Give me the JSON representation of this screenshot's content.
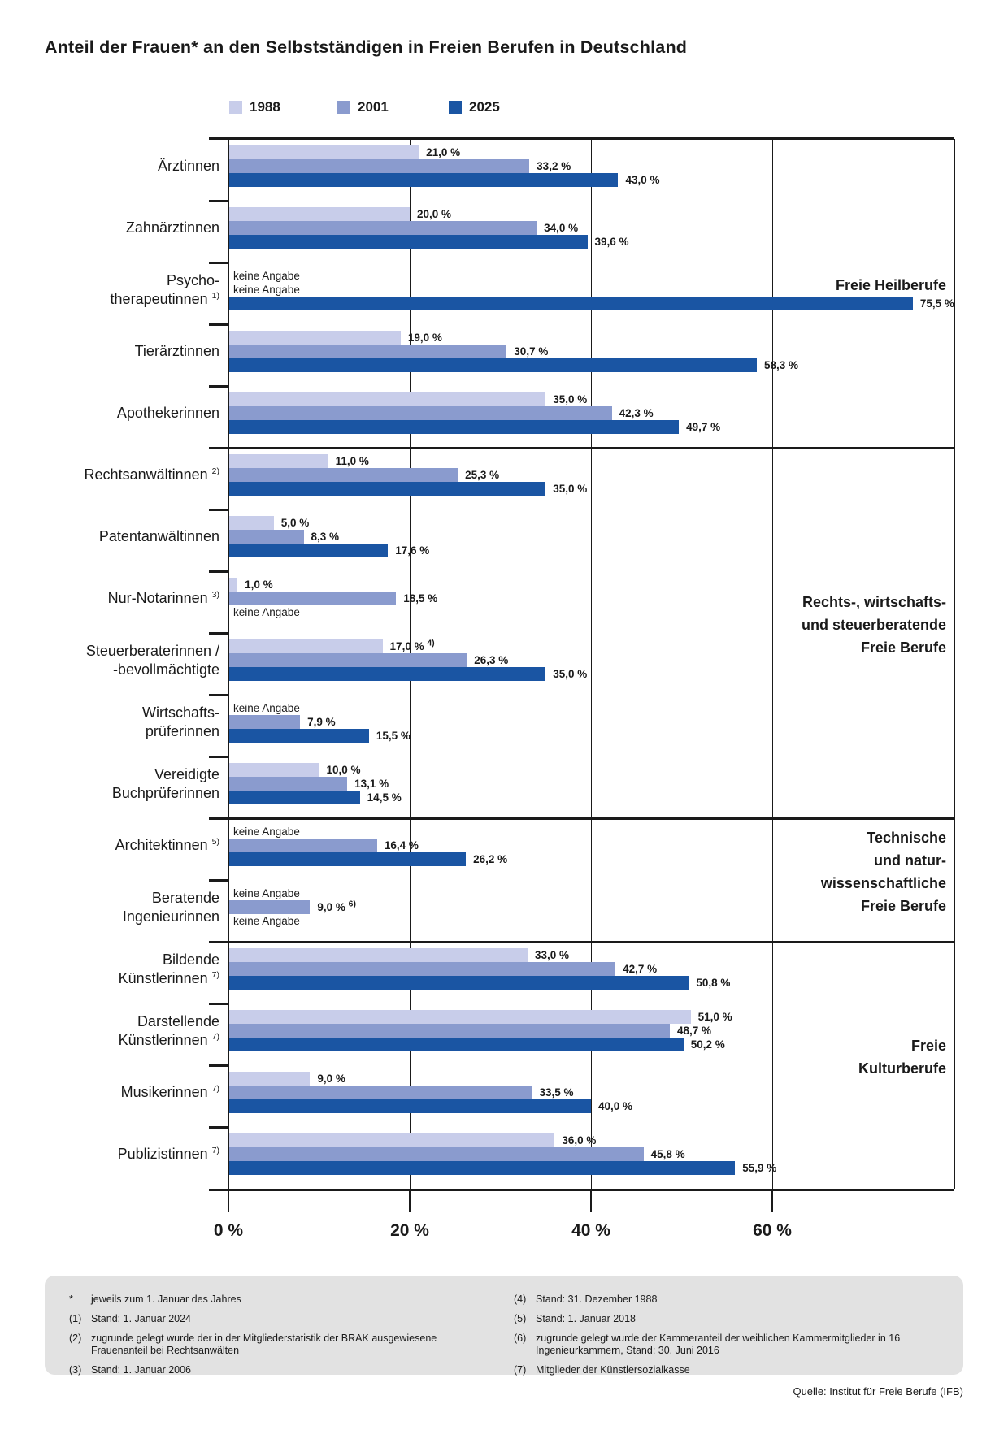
{
  "title": "Anteil der Frauen* an den Selbstständigen in Freien Berufen in Deutschland",
  "legend": {
    "items": [
      {
        "label": "1988"
      },
      {
        "label": "2001"
      },
      {
        "label": "2025"
      }
    ]
  },
  "colors": {
    "1988": "#c8cdea",
    "2001": "#8a9bce",
    "2025": "#1a55a3"
  },
  "chart_data": {
    "type": "bar",
    "orientation": "horizontal",
    "title": "Anteil der Frauen* an den Selbstständigen in Freien Berufen in Deutschland",
    "series_names": [
      "1988",
      "2001",
      "2025"
    ],
    "xlim": [
      0,
      80
    ],
    "grid": true,
    "x_ticks": [
      {
        "pct": 0,
        "label": "0 %"
      },
      {
        "pct": 20,
        "label": "20 %"
      },
      {
        "pct": 40,
        "label": "40 %"
      },
      {
        "pct": 60,
        "label": "60 %"
      }
    ],
    "no_data_text": "keine Angabe",
    "groups": [
      {
        "label_lines": [
          "Freie Heilberufe"
        ],
        "start": 0,
        "end": 4
      },
      {
        "label_lines": [
          "Rechts-, wirtschafts-",
          "und steuerberatende",
          "Freie Berufe"
        ],
        "start": 5,
        "end": 10
      },
      {
        "label_lines": [
          "Technische",
          "und natur-",
          "wissenschaftliche",
          "Freie Berufe"
        ],
        "start": 11,
        "end": 12
      },
      {
        "label_lines": [
          "Freie",
          "Kulturberufe"
        ],
        "start": 13,
        "end": 16
      }
    ],
    "rows": [
      {
        "label_lines": [
          "Ärztinnen"
        ],
        "sup": "",
        "values": [
          {
            "v": 21.0,
            "label": "21,0 %"
          },
          {
            "v": 33.2,
            "label": "33,2 %"
          },
          {
            "v": 43.0,
            "label": "43,0 %"
          }
        ]
      },
      {
        "label_lines": [
          "Zahnärztinnen"
        ],
        "sup": "",
        "values": [
          {
            "v": 20.0,
            "label": "20,0 %"
          },
          {
            "v": 34.0,
            "label": "34,0 %"
          },
          {
            "v": 39.6,
            "label": "39,6 %"
          }
        ]
      },
      {
        "label_lines": [
          "Psycho-",
          "therapeutinnen"
        ],
        "sup": "1)",
        "values": [
          {
            "v": null,
            "label": "keine Angabe"
          },
          {
            "v": null,
            "label": "keine Angabe"
          },
          {
            "v": 75.5,
            "label": "75,5 %"
          }
        ]
      },
      {
        "label_lines": [
          "Tierärztinnen"
        ],
        "sup": "",
        "values": [
          {
            "v": 19.0,
            "label": "19,0 %"
          },
          {
            "v": 30.7,
            "label": "30,7 %"
          },
          {
            "v": 58.3,
            "label": "58,3 %"
          }
        ]
      },
      {
        "label_lines": [
          "Apothekerinnen"
        ],
        "sup": "",
        "values": [
          {
            "v": 35.0,
            "label": "35,0 %"
          },
          {
            "v": 42.3,
            "label": "42,3 %"
          },
          {
            "v": 49.7,
            "label": "49,7 %"
          }
        ]
      },
      {
        "label_lines": [
          "Rechtsanwältinnen"
        ],
        "sup": "2)",
        "values": [
          {
            "v": 11.0,
            "label": "11,0 %"
          },
          {
            "v": 25.3,
            "label": "25,3 %"
          },
          {
            "v": 35.0,
            "label": "35,0 %"
          }
        ]
      },
      {
        "label_lines": [
          "Patentanwältinnen"
        ],
        "sup": "",
        "values": [
          {
            "v": 5.0,
            "label": "5,0 %"
          },
          {
            "v": 8.3,
            "label": "8,3 %"
          },
          {
            "v": 17.6,
            "label": "17,6 %"
          }
        ]
      },
      {
        "label_lines": [
          "Nur-Notarinnen"
        ],
        "sup": "3)",
        "values": [
          {
            "v": 1.0,
            "label": "1,0 %"
          },
          {
            "v": 18.5,
            "label": "18,5 %"
          },
          {
            "v": null,
            "label": "keine Angabe"
          }
        ]
      },
      {
        "label_lines": [
          "Steuerberaterinnen /",
          "-bevollmächtigte"
        ],
        "sup": "",
        "values": [
          {
            "v": 17.0,
            "label": "17,0 %",
            "sup": "4)"
          },
          {
            "v": 26.3,
            "label": "26,3 %"
          },
          {
            "v": 35.0,
            "label": "35,0 %"
          }
        ]
      },
      {
        "label_lines": [
          "Wirtschafts-",
          "prüferinnen"
        ],
        "sup": "",
        "values": [
          {
            "v": null,
            "label": "keine Angabe"
          },
          {
            "v": 7.9,
            "label": "7,9 %"
          },
          {
            "v": 15.5,
            "label": "15,5 %"
          }
        ]
      },
      {
        "label_lines": [
          "Vereidigte",
          "Buchprüferinnen"
        ],
        "sup": "",
        "values": [
          {
            "v": 10.0,
            "label": "10,0 %"
          },
          {
            "v": 13.1,
            "label": "13,1 %"
          },
          {
            "v": 14.5,
            "label": "14,5 %"
          }
        ]
      },
      {
        "label_lines": [
          "Architektinnen"
        ],
        "sup": "5)",
        "values": [
          {
            "v": null,
            "label": "keine Angabe"
          },
          {
            "v": 16.4,
            "label": "16,4 %"
          },
          {
            "v": 26.2,
            "label": "26,2 %"
          }
        ]
      },
      {
        "label_lines": [
          "Beratende",
          "Ingenieurinnen"
        ],
        "sup": "",
        "values": [
          {
            "v": null,
            "label": "keine Angabe"
          },
          {
            "v": 9.0,
            "label": "9,0 %",
            "sup": "6)"
          },
          {
            "v": null,
            "label": "keine Angabe"
          }
        ]
      },
      {
        "label_lines": [
          "Bildende",
          "Künstlerinnen"
        ],
        "sup": "7)",
        "values": [
          {
            "v": 33.0,
            "label": "33,0 %"
          },
          {
            "v": 42.7,
            "label": "42,7 %"
          },
          {
            "v": 50.8,
            "label": "50,8 %"
          }
        ]
      },
      {
        "label_lines": [
          "Darstellende",
          "Künstlerinnen"
        ],
        "sup": "7)",
        "values": [
          {
            "v": 51.0,
            "label": "51,0 %"
          },
          {
            "v": 48.7,
            "label": "48,7 %"
          },
          {
            "v": 50.2,
            "label": "50,2 %"
          }
        ]
      },
      {
        "label_lines": [
          "Musikerinnen"
        ],
        "sup": "7)",
        "values": [
          {
            "v": 9.0,
            "label": "9,0 %"
          },
          {
            "v": 33.5,
            "label": "33,5 %"
          },
          {
            "v": 40.0,
            "label": "40,0 %"
          }
        ]
      },
      {
        "label_lines": [
          "Publizistinnen"
        ],
        "sup": "7)",
        "values": [
          {
            "v": 36.0,
            "label": "36,0 %"
          },
          {
            "v": 45.8,
            "label": "45,8 %"
          },
          {
            "v": 55.9,
            "label": "55,9 %"
          }
        ]
      }
    ]
  },
  "footnotes": {
    "left": [
      {
        "marker": "*",
        "text": "jeweils zum 1. Januar des Jahres"
      },
      {
        "marker": "(1)",
        "text": "Stand: 1. Januar 2024"
      },
      {
        "marker": "(2)",
        "text": "zugrunde gelegt wurde der in der Mitgliederstatistik der BRAK ausgewiesene Frauenanteil bei Rechtsanwälten"
      },
      {
        "marker": "(3)",
        "text": "Stand: 1. Januar 2006"
      }
    ],
    "right": [
      {
        "marker": "(4)",
        "text": "Stand: 31. Dezember 1988"
      },
      {
        "marker": "(5)",
        "text": "Stand: 1. Januar 2018"
      },
      {
        "marker": "(6)",
        "text": "zugrunde gelegt wurde der Kammeranteil der weiblichen Kammermitglieder in 16 Ingenieurkammern, Stand: 30. Juni 2016"
      },
      {
        "marker": "(7)",
        "text": "Mitglieder der Künstlersozialkasse"
      }
    ]
  },
  "source": "Quelle: Institut für Freie Berufe (IFB)"
}
